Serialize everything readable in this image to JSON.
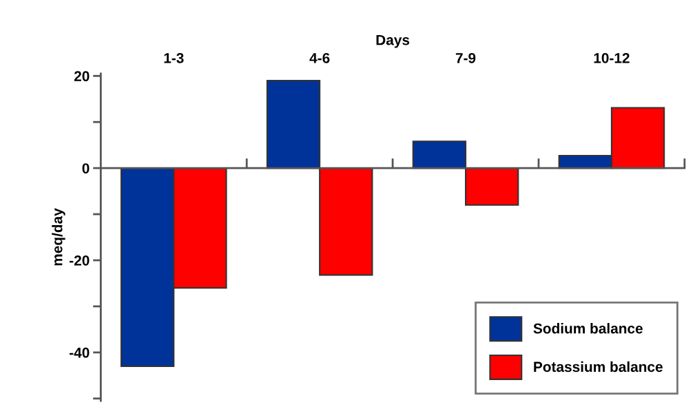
{
  "chart_data": {
    "type": "bar",
    "xlabel": "Days",
    "ylabel": "meq/day",
    "categories": [
      "1-3",
      "4-6",
      "7-9",
      "10-12"
    ],
    "series": [
      {
        "name": "Sodium balance",
        "color": "#003399",
        "values": [
          -43,
          19,
          5.8,
          2.7
        ]
      },
      {
        "name": "Potassium balance",
        "color": "#ff0000",
        "values": [
          -26,
          -23.2,
          -8,
          13.1
        ]
      }
    ],
    "ylim": [
      -50.5,
      20.5
    ],
    "yticks": [
      {
        "value": -50,
        "label": null
      },
      -40,
      {
        "value": -30,
        "label": null
      },
      -20,
      {
        "value": -10,
        "label": null
      },
      0,
      {
        "value": 10,
        "label": null
      },
      20
    ],
    "legend": "bottom right"
  }
}
